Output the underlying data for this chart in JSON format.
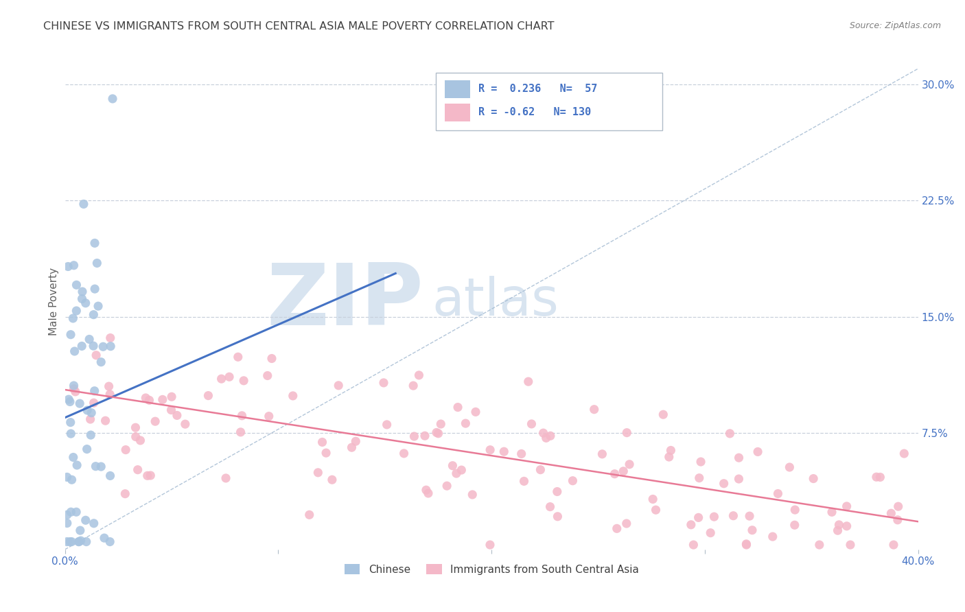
{
  "title": "CHINESE VS IMMIGRANTS FROM SOUTH CENTRAL ASIA MALE POVERTY CORRELATION CHART",
  "source": "Source: ZipAtlas.com",
  "ylabel": "Male Poverty",
  "xlim": [
    0.0,
    0.4
  ],
  "ylim": [
    0.0,
    0.32
  ],
  "yticks": [
    0.0,
    0.075,
    0.15,
    0.225,
    0.3
  ],
  "ytick_labels": [
    "",
    "7.5%",
    "15.0%",
    "22.5%",
    "30.0%"
  ],
  "xtick_labels": [
    "0.0%",
    "40.0%"
  ],
  "R_chinese": 0.236,
  "N_chinese": 57,
  "R_sca": -0.62,
  "N_sca": 130,
  "legend_labels": [
    "Chinese",
    "Immigrants from South Central Asia"
  ],
  "chinese_color": "#a8c4e0",
  "sca_color": "#f4b8c8",
  "chinese_line_color": "#4472c4",
  "sca_line_color": "#e87a96",
  "dashed_line_color": "#a0b8d0",
  "title_color": "#404040",
  "axis_label_color": "#4472c4",
  "source_color": "#808080",
  "ylabel_color": "#606060",
  "grid_color": "#c8d0dc",
  "watermark_color": "#d8e4f0",
  "watermark": "ZIPatlas",
  "legend_border_color": "#b0bcc8",
  "chinese_line_x": [
    0.0,
    0.155
  ],
  "chinese_line_y": [
    0.085,
    0.178
  ],
  "sca_line_x": [
    0.0,
    0.4
  ],
  "sca_line_y": [
    0.103,
    0.018
  ],
  "diag_line_x": [
    0.0,
    0.4
  ],
  "diag_line_y": [
    0.0,
    0.31
  ]
}
